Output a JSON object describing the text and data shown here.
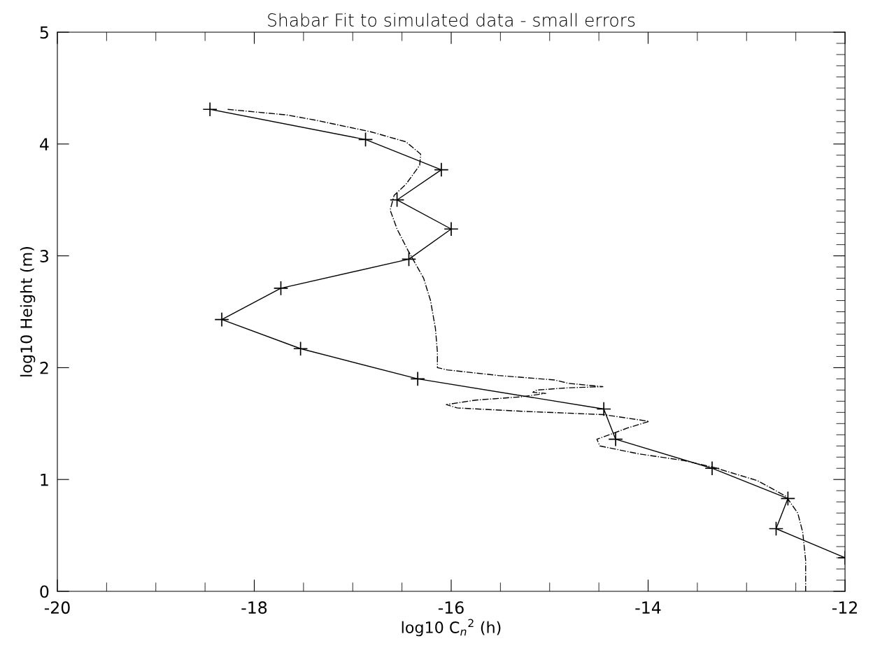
{
  "chart_data": {
    "type": "line",
    "title": "Shabar Fit to simulated data - small errors",
    "xlabel": "log10 C$_{n}$$^{2}$ (h)",
    "ylabel": "log10 Height (m)",
    "xlim": [
      -20,
      -12
    ],
    "xticks": [
      -20,
      -18,
      -16,
      -14,
      -12
    ],
    "ylim": [
      0,
      5
    ],
    "yticks": [
      0,
      1,
      2,
      3,
      4,
      5
    ],
    "grid": false,
    "legend": false,
    "series": [
      {
        "color": "#000000",
        "marker": "cross",
        "line_style": "solid",
        "x": [
          -18.45,
          -16.87,
          -16.1,
          -16.55,
          -16.0,
          -16.43,
          -17.73,
          -18.33,
          -17.53,
          -16.34,
          -14.45,
          -14.33,
          -13.35,
          -12.58,
          -12.7,
          -12.0
        ],
        "values": [
          4.31,
          4.04,
          3.77,
          3.5,
          3.24,
          2.97,
          2.71,
          2.43,
          2.17,
          1.9,
          1.63,
          1.36,
          1.1,
          0.83,
          0.56,
          0.3
        ]
      },
      {
        "color": "#000000",
        "marker": "none",
        "line_style": "dashdot",
        "x": [
          -18.27,
          -17.67,
          -17.36,
          -16.82,
          -16.46,
          -16.31,
          -16.32,
          -16.46,
          -16.58,
          -16.62,
          -16.55,
          -16.44,
          -16.28,
          -16.21,
          -16.16,
          -16.14,
          -16.14,
          -16.04,
          -15.52,
          -14.95,
          -14.81,
          -14.46,
          -14.81,
          -15.13,
          -15.17,
          -15.04,
          -15.28,
          -15.75,
          -16.05,
          -15.94,
          -15.28,
          -14.45,
          -13.99,
          -14.21,
          -14.52,
          -14.49,
          -14.1,
          -13.64,
          -13.34,
          -12.89,
          -12.6,
          -12.48,
          -12.43,
          -12.4,
          -12.4
        ],
        "values": [
          4.31,
          4.26,
          4.21,
          4.11,
          4.02,
          3.91,
          3.81,
          3.64,
          3.54,
          3.41,
          3.24,
          3.05,
          2.8,
          2.6,
          2.35,
          2.14,
          2.0,
          1.98,
          1.93,
          1.89,
          1.86,
          1.83,
          1.82,
          1.8,
          1.78,
          1.77,
          1.74,
          1.71,
          1.67,
          1.64,
          1.61,
          1.58,
          1.52,
          1.46,
          1.36,
          1.3,
          1.23,
          1.17,
          1.11,
          0.99,
          0.85,
          0.7,
          0.53,
          0.28,
          0.0
        ]
      }
    ]
  }
}
